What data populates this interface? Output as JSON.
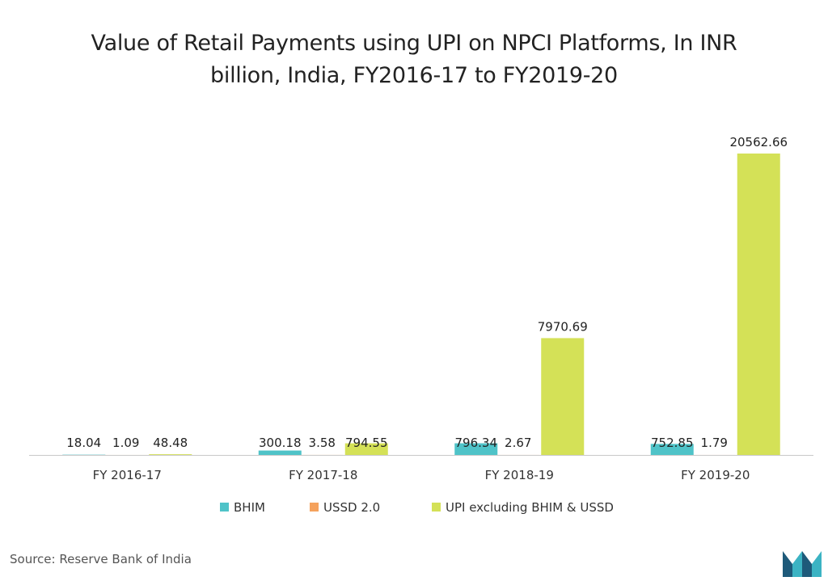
{
  "chart_data": {
    "type": "bar",
    "title": "Value of Retail Payments using UPI on NPCI Platforms, In INR billion, India, FY2016-17 to FY2019-20",
    "title_lines": [
      "Value of Retail Payments using UPI on NPCI Platforms, In INR",
      "billion, India, FY2016-17 to FY2019-20"
    ],
    "categories": [
      "FY 2016-17",
      "FY 2017-18",
      "FY 2018-19",
      "FY 2019-20"
    ],
    "series": [
      {
        "name": "BHIM",
        "color": "#4fc3c8",
        "values": [
          18.04,
          300.18,
          796.34,
          752.85
        ],
        "labels": [
          "18.04",
          "300.18",
          "796.34",
          "752.85"
        ]
      },
      {
        "name": "USSD 2.0",
        "color": "#f5a25d",
        "values": [
          1.09,
          3.58,
          2.67,
          1.79
        ],
        "labels": [
          "1.09",
          "3.58",
          "2.67",
          "1.79"
        ]
      },
      {
        "name": "UPI excluding BHIM & USSD",
        "color": "#d4e157",
        "values": [
          48.48,
          794.55,
          7970.69,
          20562.66
        ],
        "labels": [
          "48.48",
          "794.55",
          "7970.69",
          "20562.66"
        ]
      }
    ],
    "xlabel": "",
    "ylabel": "",
    "ylim": [
      0,
      20562.66
    ],
    "grid": false,
    "legend_position": "bottom"
  },
  "source": "Source: Reserve Bank of India",
  "logo": {
    "icon": "mordor-logo-icon",
    "colors": [
      "#1e5a7a",
      "#3bb3c3"
    ]
  }
}
